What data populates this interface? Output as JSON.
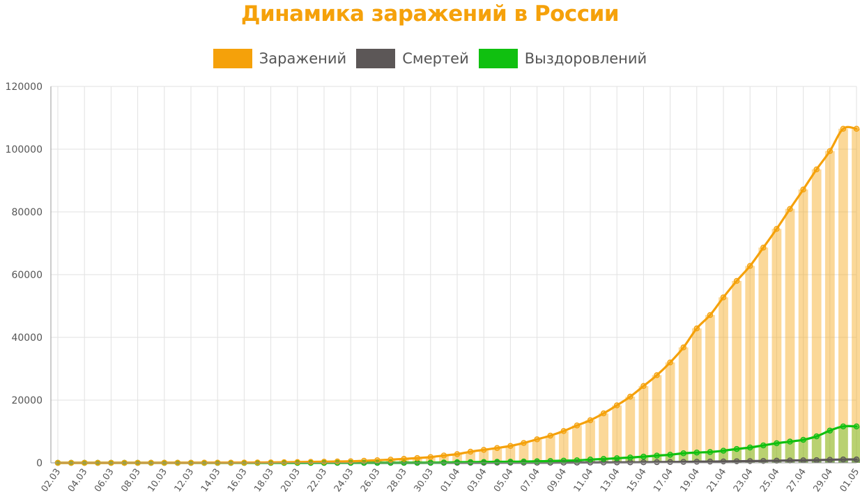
{
  "chart_data": {
    "type": "bar",
    "title": "Динамика заражений в России",
    "xlabel": "",
    "ylabel": "",
    "ylim": [
      0,
      120000
    ],
    "yticks": [
      0,
      20000,
      40000,
      60000,
      80000,
      100000,
      120000
    ],
    "grid": true,
    "legend_position": "top",
    "categories": [
      "02.03",
      "03.03",
      "04.03",
      "05.03",
      "06.03",
      "07.03",
      "08.03",
      "09.03",
      "10.03",
      "11.03",
      "12.03",
      "13.03",
      "14.03",
      "15.03",
      "16.03",
      "17.03",
      "18.03",
      "19.03",
      "20.03",
      "21.03",
      "22.03",
      "23.03",
      "24.03",
      "25.03",
      "26.03",
      "27.03",
      "28.03",
      "29.03",
      "30.03",
      "31.03",
      "01.04",
      "02.04",
      "03.04",
      "04.04",
      "05.04",
      "06.04",
      "07.04",
      "08.04",
      "09.04",
      "10.04",
      "11.04",
      "12.04",
      "13.04",
      "14.04",
      "15.04",
      "16.04",
      "17.04",
      "18.04",
      "19.04",
      "20.04",
      "21.04",
      "22.04",
      "23.04",
      "24.04",
      "25.04",
      "26.04",
      "27.04",
      "28.04",
      "29.04",
      "30.04",
      "01.05"
    ],
    "tick_labels": [
      "02.03",
      "04.03",
      "06.03",
      "08.03",
      "10.03",
      "12.03",
      "14.03",
      "16.03",
      "18.03",
      "20.03",
      "22.03",
      "24.03",
      "26.03",
      "28.03",
      "30.03",
      "01.04",
      "03.04",
      "05.04",
      "07.04",
      "09.04",
      "11.04",
      "13.04",
      "15.04",
      "17.04",
      "19.04",
      "21.04",
      "23.04",
      "25.04",
      "27.04",
      "29.04",
      "01.05"
    ],
    "series": [
      {
        "name": "Заражений",
        "color": "#f5a10a",
        "values": [
          3,
          3,
          4,
          4,
          7,
          10,
          13,
          17,
          20,
          28,
          34,
          45,
          59,
          63,
          90,
          114,
          147,
          199,
          253,
          306,
          367,
          438,
          495,
          658,
          840,
          1036,
          1264,
          1534,
          1836,
          2337,
          2777,
          3548,
          4149,
          4731,
          5389,
          6343,
          7497,
          8672,
          10131,
          11917,
          13584,
          15770,
          18328,
          21102,
          24490,
          27938,
          32008,
          36793,
          42853,
          47121,
          52763,
          57999,
          62773,
          68622,
          74588,
          80949,
          87147,
          93558,
          99399,
          106498,
          106498
        ]
      },
      {
        "name": "Смертей",
        "color": "#5c5757",
        "values": [
          0,
          0,
          0,
          0,
          0,
          0,
          0,
          0,
          0,
          0,
          0,
          0,
          0,
          0,
          0,
          0,
          0,
          1,
          1,
          1,
          1,
          1,
          1,
          3,
          3,
          4,
          4,
          8,
          9,
          17,
          24,
          30,
          34,
          43,
          45,
          47,
          58,
          63,
          76,
          94,
          106,
          130,
          148,
          170,
          198,
          232,
          273,
          313,
          361,
          405,
          456,
          513,
          555,
          615,
          681,
          747,
          794,
          867,
          972,
          1073,
          1073
        ]
      },
      {
        "name": "Выздоровлений",
        "color": "#10c010",
        "values": [
          0,
          0,
          0,
          0,
          0,
          0,
          0,
          0,
          0,
          0,
          0,
          0,
          0,
          0,
          0,
          0,
          0,
          5,
          5,
          9,
          12,
          16,
          22,
          29,
          38,
          45,
          49,
          64,
          66,
          121,
          190,
          235,
          281,
          333,
          355,
          406,
          494,
          580,
          698,
          795,
          1045,
          1238,
          1470,
          1694,
          1986,
          2304,
          2590,
          3057,
          3291,
          3446,
          3873,
          4420,
          4891,
          5568,
          6250,
          6767,
          7346,
          8456,
          10286,
          11619,
          11619
        ]
      }
    ]
  }
}
